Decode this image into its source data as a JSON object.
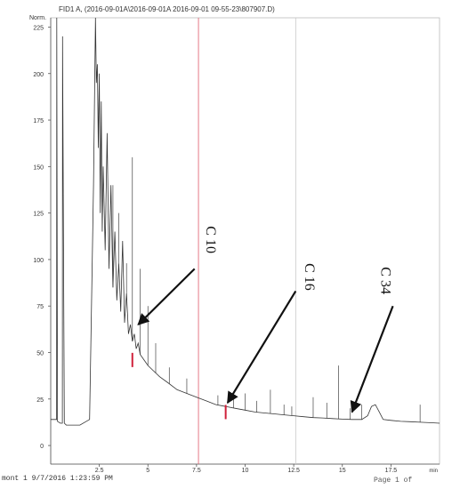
{
  "header": {
    "title": "FID1 A, (2016-09-01A\\2016-09-01A 2016-09-01 09-55-23\\807907.D)"
  },
  "footer": {
    "text": "mont 1 9/7/2016 1:23:59 PM",
    "page": "Page 1 of"
  },
  "chart_data": {
    "type": "line",
    "ylabel": "Norm.",
    "xlabel": "min",
    "xlim": [
      0,
      20
    ],
    "ylim": [
      -10,
      230
    ],
    "x_ticks": [
      2.5,
      5,
      7.5,
      10,
      12.5,
      15,
      17.5
    ],
    "x_tick_labels": [
      "2.5",
      "5",
      "7.5",
      "10",
      "12.5",
      "15",
      "17.5"
    ],
    "y_ticks": [
      0,
      25,
      50,
      75,
      100,
      125,
      150,
      175,
      200,
      225
    ],
    "y_tick_labels": [
      "0",
      "25",
      "50",
      "75",
      "100",
      "125",
      "150",
      "175",
      "200",
      "225"
    ],
    "vertical_markers": [
      {
        "x": 7.6,
        "color": "#e05a6a"
      },
      {
        "x": 12.6,
        "color": "#c8c8c8"
      }
    ],
    "series": [
      {
        "x": [
          0,
          0.3,
          0.31,
          0.35,
          0.5,
          0.6,
          0.61,
          0.7,
          0.8,
          1.0,
          1.5,
          2.0,
          2.2,
          2.3,
          2.35,
          2.4,
          2.45,
          2.5,
          2.55,
          2.6,
          2.65,
          2.7,
          2.8,
          2.9,
          3.0,
          3.1,
          3.2,
          3.3,
          3.4,
          3.5,
          3.6,
          3.7,
          3.8,
          3.9,
          4.0,
          4.1,
          4.2,
          4.3,
          4.4,
          4.5,
          4.6,
          4.8,
          5.0,
          5.3,
          5.6,
          6.0,
          6.5,
          7.0,
          7.5,
          8.0,
          8.5,
          9.0,
          9.5,
          10.0,
          10.5,
          11.0,
          11.5,
          12.0,
          12.5,
          13.0,
          13.5,
          14.0,
          14.5,
          15.0,
          15.5,
          16.0,
          16.3,
          16.5,
          16.7,
          16.9,
          17.1,
          17.5,
          18.0,
          18.5,
          19.0,
          19.5,
          20.0
        ],
        "y": [
          14,
          14,
          230,
          13,
          12,
          12,
          220,
          12,
          11,
          11,
          11,
          14,
          140,
          230,
          195,
          205,
          160,
          200,
          125,
          185,
          115,
          150,
          105,
          168,
          95,
          140,
          85,
          115,
          78,
          98,
          72,
          110,
          66,
          82,
          60,
          65,
          56,
          60,
          52,
          55,
          49,
          46,
          43,
          40,
          37,
          34,
          30,
          28,
          26,
          24,
          22,
          21,
          20,
          19,
          18,
          17.5,
          17,
          16.5,
          16,
          15.5,
          15,
          14.8,
          14.5,
          14.2,
          14,
          14,
          16,
          21,
          22,
          18,
          14,
          13.5,
          13,
          12.8,
          12.5,
          12.3,
          12
        ]
      }
    ],
    "spikes": [
      {
        "x": 3.2,
        "y": 140
      },
      {
        "x": 3.5,
        "y": 125
      },
      {
        "x": 3.9,
        "y": 98
      },
      {
        "x": 4.2,
        "y": 155
      },
      {
        "x": 4.6,
        "y": 95
      },
      {
        "x": 5.0,
        "y": 75
      },
      {
        "x": 5.4,
        "y": 55
      },
      {
        "x": 6.1,
        "y": 42
      },
      {
        "x": 7.0,
        "y": 36
      },
      {
        "x": 8.6,
        "y": 27
      },
      {
        "x": 9.4,
        "y": 26
      },
      {
        "x": 10.0,
        "y": 28
      },
      {
        "x": 10.6,
        "y": 24
      },
      {
        "x": 11.3,
        "y": 30
      },
      {
        "x": 12.0,
        "y": 22
      },
      {
        "x": 12.4,
        "y": 21
      },
      {
        "x": 13.5,
        "y": 26
      },
      {
        "x": 14.2,
        "y": 23
      },
      {
        "x": 14.8,
        "y": 43
      },
      {
        "x": 15.4,
        "y": 20
      },
      {
        "x": 16.0,
        "y": 22
      },
      {
        "x": 19.0,
        "y": 22
      }
    ],
    "red_marks": [
      {
        "x": 4.2,
        "y": 46
      },
      {
        "x": 9.0,
        "y": 18
      }
    ],
    "annotations": [
      {
        "label": "C 10",
        "text_x": 8.0,
        "text_y": 118,
        "from_x": 7.4,
        "from_y": 95,
        "to_x": 4.5,
        "to_y": 65
      },
      {
        "label": "C 16",
        "text_x": 13.1,
        "text_y": 98,
        "from_x": 12.6,
        "from_y": 83,
        "to_x": 9.1,
        "to_y": 23
      },
      {
        "label": "C 34",
        "text_x": 17.0,
        "text_y": 96,
        "from_x": 17.6,
        "from_y": 75,
        "to_x": 15.5,
        "to_y": 18
      }
    ]
  }
}
